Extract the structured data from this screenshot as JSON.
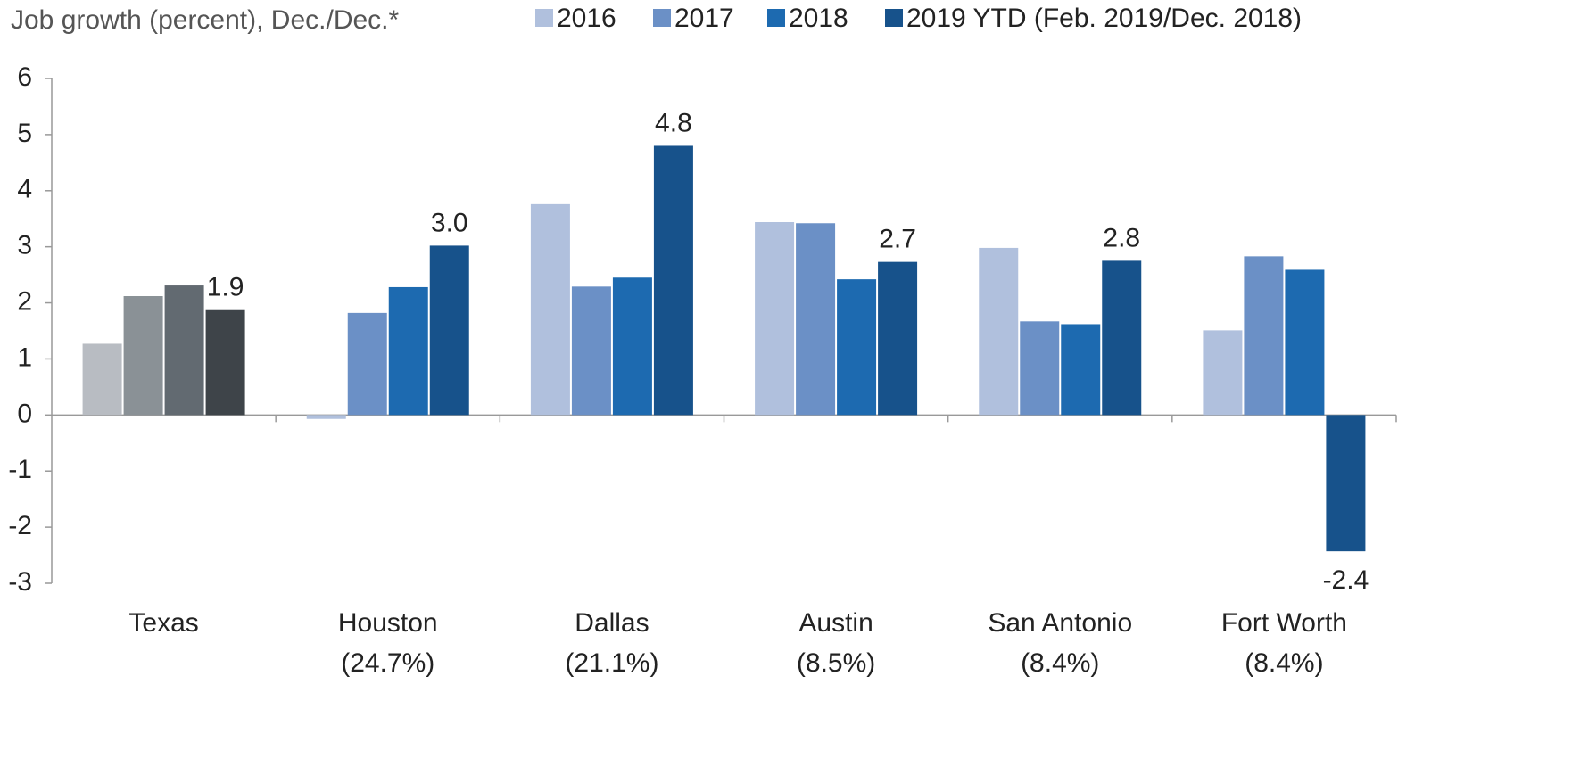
{
  "chart_data": {
    "type": "bar",
    "title": "Job growth (percent), Dec./Dec.*",
    "categories": [
      "Texas",
      "Houston",
      "Dallas",
      "Austin",
      "San Antonio",
      "Fort Worth"
    ],
    "category_notes": [
      null,
      "(24.7%)",
      "(21.1%)",
      "(8.5%)",
      "(8.4%)",
      "(8.4%)"
    ],
    "series": [
      {
        "name": "2016",
        "color": "#b0c0dd",
        "colors": [
          "#b8bcc2",
          "#b0c0dd",
          "#b0c0dd",
          "#b0c0dd",
          "#b0c0dd",
          "#b0c0dd"
        ],
        "values": [
          1.27,
          -0.07,
          3.76,
          3.44,
          2.98,
          1.51
        ]
      },
      {
        "name": "2017",
        "color": "#6b90c6",
        "colors": [
          "#8a9196",
          "#6b90c6",
          "#6b90c6",
          "#6b90c6",
          "#6b90c6",
          "#6b90c6"
        ],
        "values": [
          2.12,
          1.82,
          2.29,
          3.42,
          1.67,
          2.83
        ]
      },
      {
        "name": "2018",
        "color": "#1d6ab0",
        "colors": [
          "#626a71",
          "#1d6ab0",
          "#1d6ab0",
          "#1d6ab0",
          "#1d6ab0",
          "#1d6ab0"
        ],
        "values": [
          2.31,
          2.28,
          2.45,
          2.42,
          1.62,
          2.59
        ]
      },
      {
        "name": "2019 YTD (Feb. 2019/Dec. 2018)",
        "color": "#17528b",
        "colors": [
          "#3e4449",
          "#17528b",
          "#17528b",
          "#17528b",
          "#17528b",
          "#17528b"
        ],
        "values": [
          1.87,
          3.02,
          4.8,
          2.73,
          2.75,
          -2.43
        ],
        "value_labels": [
          "1.9",
          "3.0",
          "4.8",
          "2.7",
          "2.8",
          "-2.4"
        ]
      }
    ],
    "ylim": [
      -3,
      6
    ],
    "yticks": [
      -3,
      -2,
      -1,
      0,
      1,
      2,
      3,
      4,
      5,
      6
    ]
  }
}
